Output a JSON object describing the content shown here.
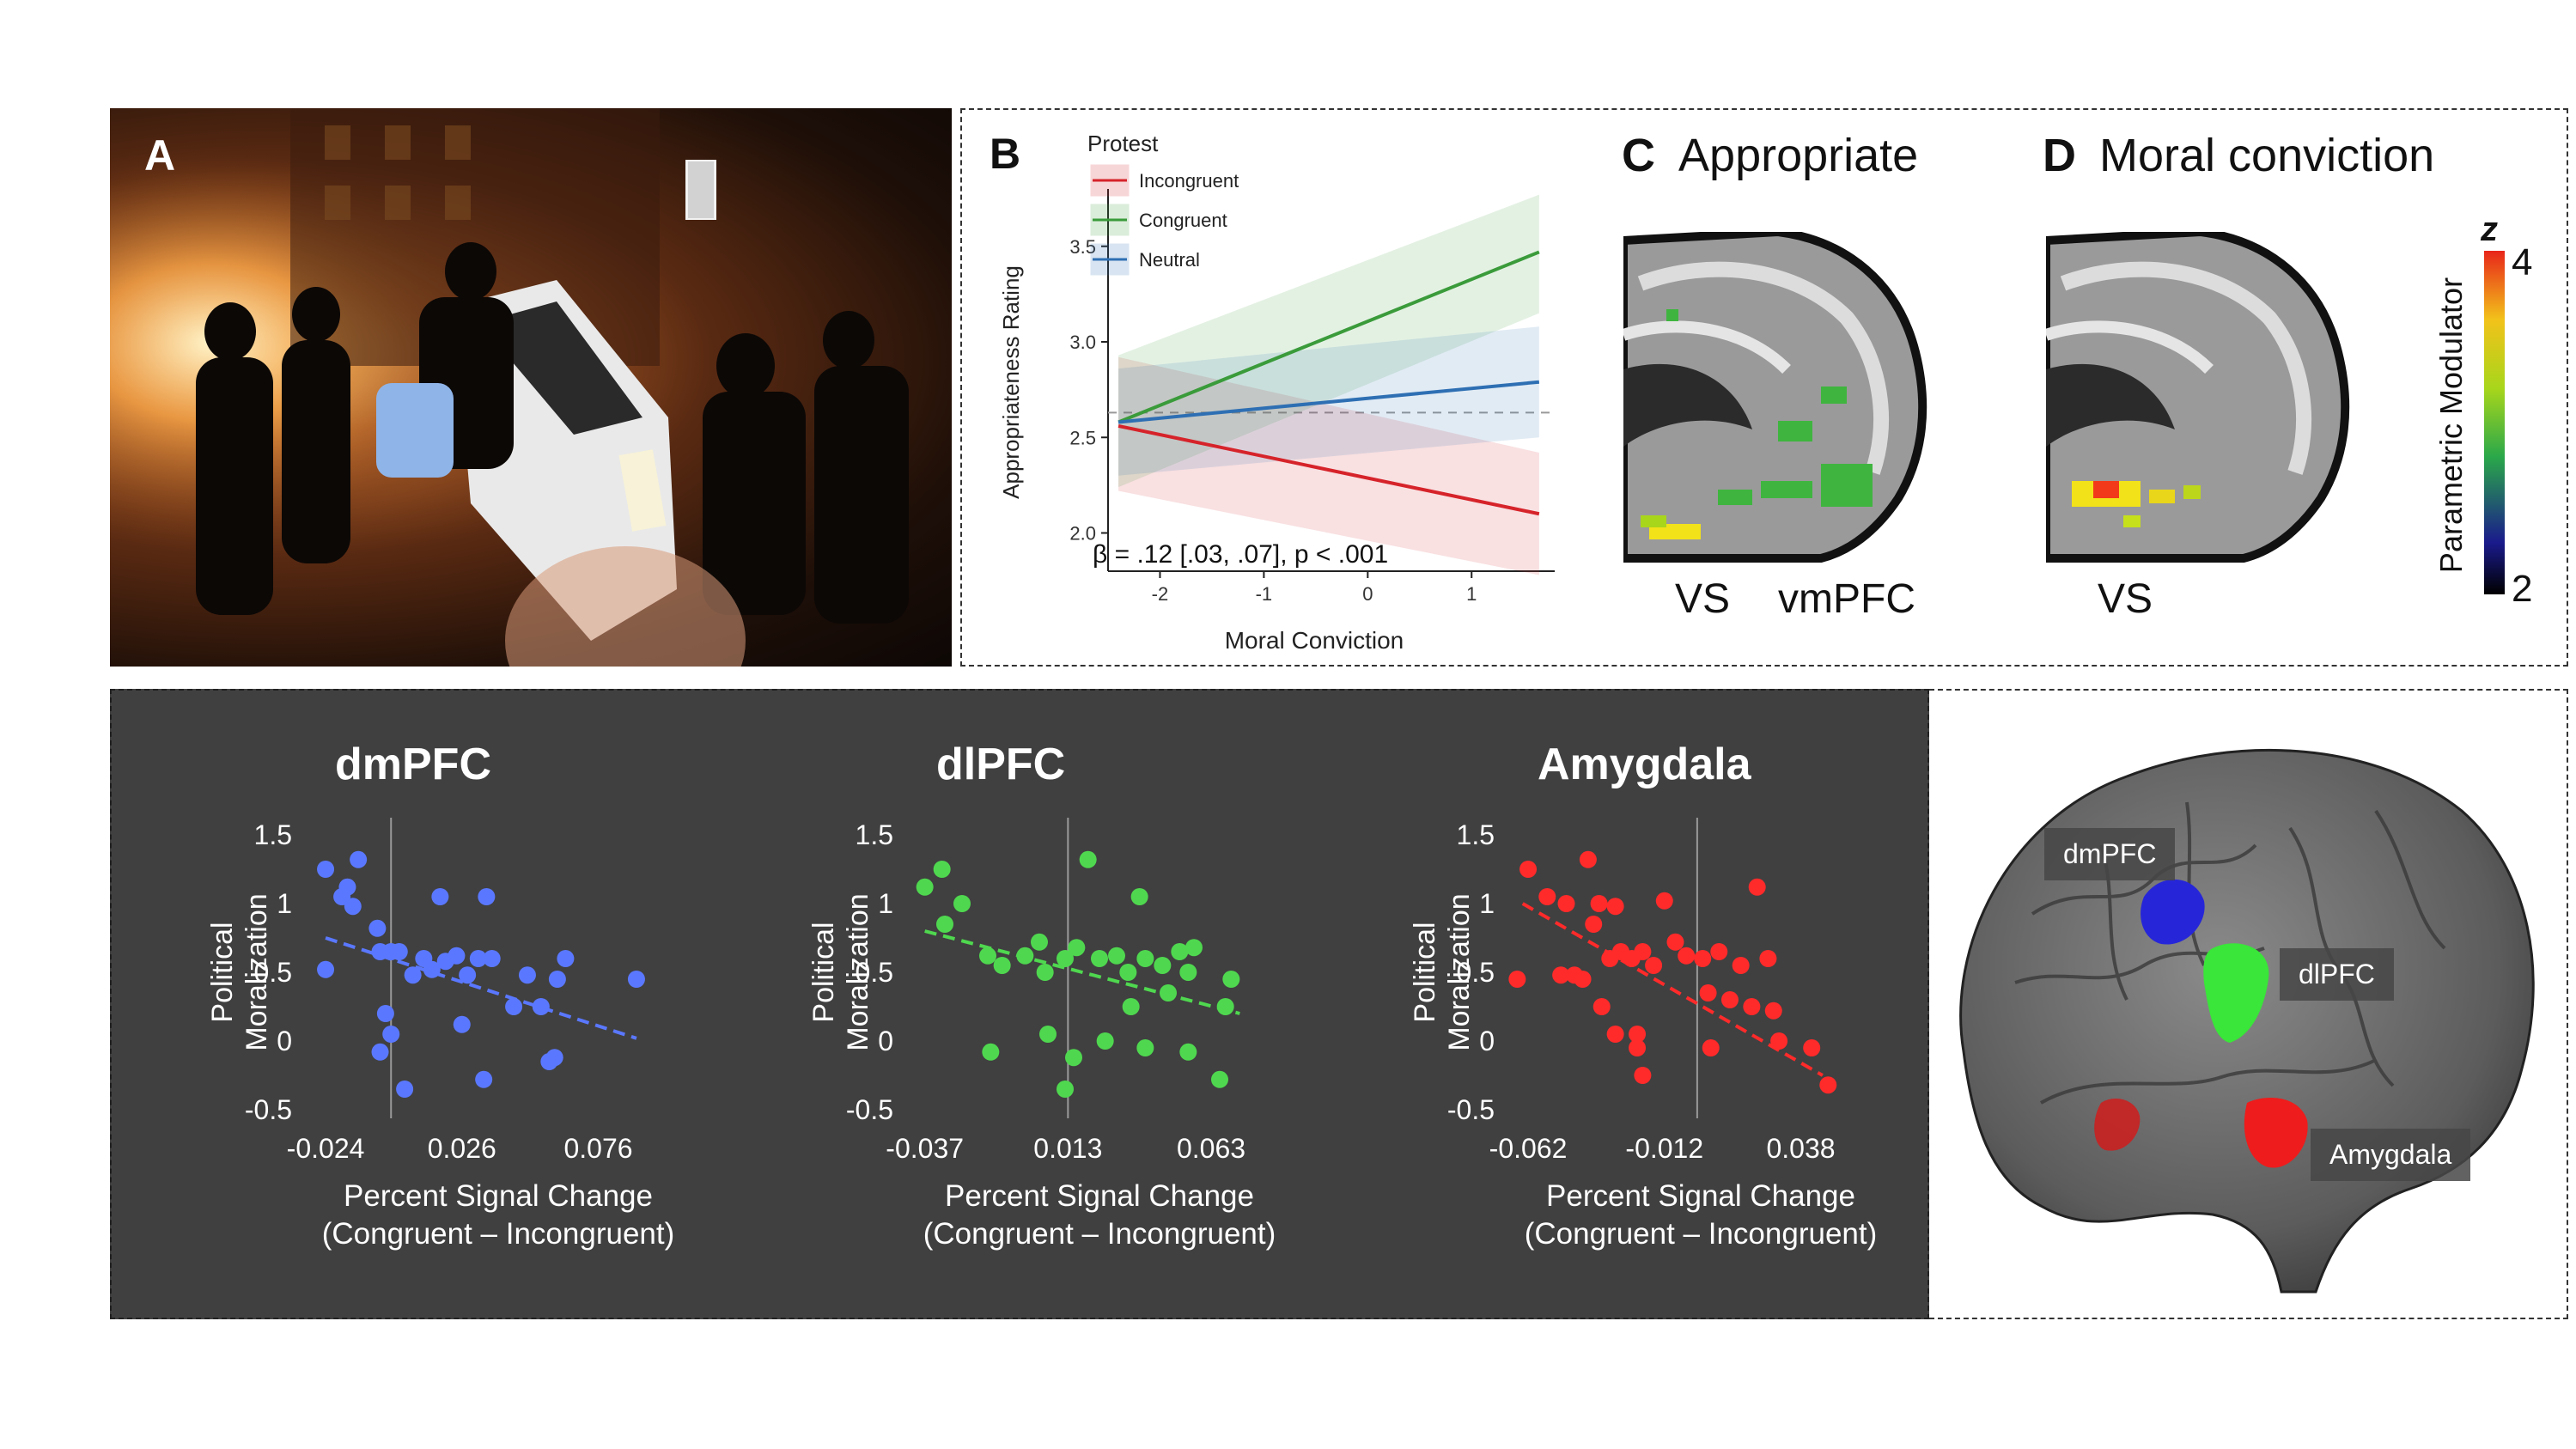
{
  "panel_a": {
    "letter": "A"
  },
  "panel_b": {
    "letter": "B",
    "legend_title": "Protest",
    "stat_text": "β = .12 [.03, .07], p < .001"
  },
  "panel_c": {
    "letter": "C",
    "title": "Appropriate",
    "labels": [
      "VS",
      "vmPFC"
    ]
  },
  "panel_d": {
    "letter": "D",
    "title": "Moral conviction",
    "labels": [
      "VS"
    ]
  },
  "colorbar": {
    "label": "Parametric Modulator",
    "symbol": "z",
    "max": "4",
    "min": "2"
  },
  "brain3d": {
    "labels": [
      "dmPFC",
      "dlPFC",
      "Amygdala"
    ]
  },
  "colors": {
    "incongruent": "#d6232a",
    "congruent": "#3a9b3a",
    "neutral": "#2e6fb3",
    "dmpfc": "#5a78ff",
    "dlpfc": "#4fd84f",
    "amygdala": "#ff2a2a"
  },
  "chart_data": [
    {
      "type": "line",
      "xlabel": "Moral Conviction",
      "ylabel": "Appropriateness Rating",
      "xlim": [
        -2.5,
        1.8
      ],
      "ylim": [
        1.8,
        3.8
      ],
      "xticks": [
        -2,
        -1,
        0,
        1
      ],
      "yticks": [
        2.0,
        2.5,
        3.0,
        3.5
      ],
      "reference_y": 2.63,
      "series": [
        {
          "name": "Incongruent",
          "color": "#d6232a",
          "x": [
            -2.4,
            1.65
          ],
          "y": [
            2.56,
            2.1
          ],
          "ci_low": [
            2.22,
            1.78
          ],
          "ci_high": [
            2.92,
            2.42
          ]
        },
        {
          "name": "Congruent",
          "color": "#3a9b3a",
          "x": [
            -2.4,
            1.65
          ],
          "y": [
            2.58,
            3.47
          ],
          "ci_low": [
            2.24,
            3.15
          ],
          "ci_high": [
            2.93,
            3.77
          ]
        },
        {
          "name": "Neutral",
          "color": "#2e6fb3",
          "x": [
            -2.4,
            1.65
          ],
          "y": [
            2.58,
            2.79
          ],
          "ci_low": [
            2.3,
            2.5
          ],
          "ci_high": [
            2.86,
            3.08
          ]
        }
      ]
    },
    {
      "type": "scatter",
      "title": "dmPFC",
      "color": "#5a78ff",
      "ylabel": "Political Moralization",
      "xlabel": "Percent Signal Change",
      "xlabel2": "(Congruent – Incongruent)",
      "xticks": [
        "-0.024",
        "0.026",
        "0.076"
      ],
      "xtick_values": [
        -0.024,
        0.026,
        0.076
      ],
      "yticks": [
        "1.5",
        "1",
        "0.5",
        "0",
        "-0.5"
      ],
      "ytick_values": [
        1.5,
        1,
        0.5,
        0,
        -0.5
      ],
      "xlim": [
        -0.03,
        0.096
      ],
      "ylim": [
        -0.5,
        1.5
      ],
      "vline_x": 0,
      "trend": {
        "x": [
          -0.024,
          0.09
        ],
        "y": [
          0.75,
          0.02
        ]
      },
      "points": [
        [
          -0.024,
          1.25
        ],
        [
          -0.018,
          1.05
        ],
        [
          -0.016,
          1.12
        ],
        [
          -0.012,
          1.32
        ],
        [
          -0.014,
          0.98
        ],
        [
          -0.024,
          0.52
        ],
        [
          -0.005,
          0.82
        ],
        [
          -0.004,
          0.65
        ],
        [
          0.0,
          0.65
        ],
        [
          0.003,
          0.65
        ],
        [
          -0.002,
          0.2
        ],
        [
          0.0,
          0.05
        ],
        [
          -0.004,
          -0.08
        ],
        [
          0.005,
          -0.35
        ],
        [
          0.008,
          0.48
        ],
        [
          0.012,
          0.6
        ],
        [
          0.015,
          0.52
        ],
        [
          0.018,
          1.05
        ],
        [
          0.02,
          0.58
        ],
        [
          0.024,
          0.62
        ],
        [
          0.028,
          0.48
        ],
        [
          0.026,
          0.12
        ],
        [
          0.032,
          0.6
        ],
        [
          0.035,
          1.05
        ],
        [
          0.037,
          0.6
        ],
        [
          0.034,
          -0.28
        ],
        [
          0.045,
          0.25
        ],
        [
          0.05,
          0.48
        ],
        [
          0.055,
          0.25
        ],
        [
          0.058,
          -0.15
        ],
        [
          0.06,
          -0.12
        ],
        [
          0.061,
          0.45
        ],
        [
          0.064,
          0.6
        ],
        [
          0.09,
          0.45
        ]
      ]
    },
    {
      "type": "scatter",
      "title": "dlPFC",
      "color": "#4fd84f",
      "ylabel": "Political Moralization",
      "xlabel": "Percent Signal Change",
      "xlabel2": "(Congruent – Incongruent)",
      "xticks": [
        "-0.037",
        "0.013",
        "0.063"
      ],
      "xtick_values": [
        -0.037,
        0.013,
        0.063
      ],
      "yticks": [
        "1.5",
        "1",
        "0.5",
        "0",
        "-0.5"
      ],
      "ytick_values": [
        1.5,
        1,
        0.5,
        0,
        -0.5
      ],
      "xlim": [
        -0.042,
        0.078
      ],
      "ylim": [
        -0.5,
        1.5
      ],
      "vline_x": 0.013,
      "trend": {
        "x": [
          -0.037,
          0.073
        ],
        "y": [
          0.8,
          0.2
        ]
      },
      "points": [
        [
          -0.037,
          1.12
        ],
        [
          -0.031,
          1.25
        ],
        [
          -0.024,
          1.0
        ],
        [
          -0.03,
          0.85
        ],
        [
          -0.015,
          0.62
        ],
        [
          -0.01,
          0.55
        ],
        [
          -0.002,
          0.62
        ],
        [
          0.003,
          0.72
        ],
        [
          0.005,
          0.5
        ],
        [
          0.012,
          0.6
        ],
        [
          0.016,
          0.68
        ],
        [
          0.02,
          1.32
        ],
        [
          0.024,
          0.6
        ],
        [
          0.034,
          0.5
        ],
        [
          0.03,
          0.62
        ],
        [
          0.038,
          1.05
        ],
        [
          0.04,
          0.6
        ],
        [
          0.046,
          0.55
        ],
        [
          0.052,
          0.65
        ],
        [
          0.057,
          0.68
        ],
        [
          0.055,
          0.5
        ],
        [
          0.048,
          0.35
        ],
        [
          0.035,
          0.25
        ],
        [
          0.026,
          0.0
        ],
        [
          0.015,
          -0.12
        ],
        [
          0.006,
          0.05
        ],
        [
          -0.014,
          -0.08
        ],
        [
          0.012,
          -0.35
        ],
        [
          0.04,
          -0.05
        ],
        [
          0.055,
          -0.08
        ],
        [
          0.068,
          0.25
        ],
        [
          0.07,
          0.45
        ],
        [
          0.066,
          -0.28
        ]
      ]
    },
    {
      "type": "scatter",
      "title": "Amygdala",
      "color": "#ff2a2a",
      "ylabel": "Political Moralization",
      "xlabel": "Percent Signal Change",
      "xlabel2": "(Congruent – Incongruent)",
      "xticks": [
        "-0.062",
        "-0.012",
        "0.038"
      ],
      "xtick_values": [
        -0.062,
        -0.012,
        0.038
      ],
      "yticks": [
        "1.5",
        "1",
        "0.5",
        "0",
        "-0.5"
      ],
      "ytick_values": [
        1.5,
        1,
        0.5,
        0,
        -0.5
      ],
      "xlim": [
        -0.068,
        0.058
      ],
      "ylim": [
        -0.5,
        1.5
      ],
      "vline_x": 0.0,
      "trend": {
        "x": [
          -0.064,
          0.046
        ],
        "y": [
          1.0,
          -0.25
        ]
      },
      "points": [
        [
          -0.062,
          1.25
        ],
        [
          -0.055,
          1.05
        ],
        [
          -0.048,
          1.0
        ],
        [
          -0.04,
          1.32
        ],
        [
          -0.036,
          1.0
        ],
        [
          -0.03,
          0.98
        ],
        [
          -0.038,
          0.85
        ],
        [
          -0.032,
          0.6
        ],
        [
          -0.028,
          0.65
        ],
        [
          -0.024,
          0.6
        ],
        [
          -0.02,
          0.65
        ],
        [
          -0.016,
          0.55
        ],
        [
          -0.012,
          1.02
        ],
        [
          -0.008,
          0.72
        ],
        [
          -0.004,
          0.62
        ],
        [
          0.002,
          0.6
        ],
        [
          0.008,
          0.65
        ],
        [
          0.016,
          0.55
        ],
        [
          0.022,
          1.12
        ],
        [
          0.026,
          0.6
        ],
        [
          -0.045,
          0.48
        ],
        [
          -0.05,
          0.48
        ],
        [
          -0.066,
          0.45
        ],
        [
          -0.042,
          0.45
        ],
        [
          -0.035,
          0.25
        ],
        [
          -0.03,
          0.05
        ],
        [
          -0.022,
          -0.05
        ],
        [
          -0.02,
          -0.25
        ],
        [
          0.004,
          0.35
        ],
        [
          0.012,
          0.3
        ],
        [
          0.02,
          0.25
        ],
        [
          0.028,
          0.22
        ],
        [
          0.005,
          -0.05
        ],
        [
          0.03,
          0.0
        ],
        [
          0.042,
          -0.05
        ],
        [
          0.048,
          -0.32
        ],
        [
          -0.022,
          0.05
        ]
      ]
    }
  ]
}
